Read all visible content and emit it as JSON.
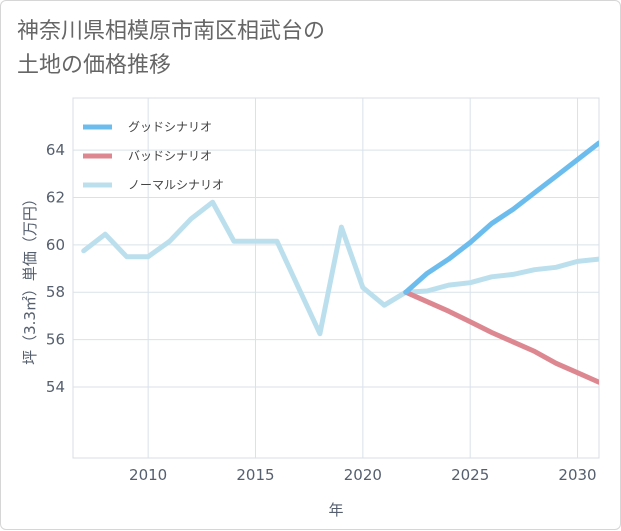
{
  "title": "神奈川県相模原市南区相武台の\n土地の価格推移",
  "chart_data": {
    "type": "line",
    "xlabel": "年",
    "ylabel": "坪（3.3㎡）単価（万円）",
    "xlim": [
      2006.5,
      2031
    ],
    "ylim": [
      51,
      66.2
    ],
    "x_ticks": [
      2010,
      2015,
      2020,
      2025,
      2030
    ],
    "y_ticks": [
      54,
      56,
      58,
      60,
      62,
      64
    ],
    "grid": true,
    "legend_position": "top-left",
    "series": [
      {
        "name": "グッドシナリオ",
        "color": "#6cbdee",
        "x": [
          2022,
          2023,
          2024,
          2025,
          2026,
          2027,
          2028,
          2029,
          2030,
          2031
        ],
        "y": [
          58.0,
          58.8,
          59.4,
          60.1,
          60.9,
          61.5,
          62.2,
          62.9,
          63.6,
          64.3
        ]
      },
      {
        "name": "バッドシナリオ",
        "color": "#dd8890",
        "x": [
          2022,
          2023,
          2024,
          2025,
          2026,
          2027,
          2028,
          2029,
          2030,
          2031
        ],
        "y": [
          58.0,
          57.6,
          57.2,
          56.75,
          56.3,
          55.9,
          55.5,
          55.0,
          54.6,
          54.2
        ]
      },
      {
        "name": "ノーマルシナリオ",
        "color": "#bcdfee",
        "x": [
          2007,
          2008,
          2009,
          2010,
          2011,
          2012,
          2013,
          2014,
          2015,
          2016,
          2017,
          2018,
          2019,
          2020,
          2021,
          2022,
          2023,
          2024,
          2025,
          2026,
          2027,
          2028,
          2029,
          2030,
          2031
        ],
        "y": [
          59.75,
          60.45,
          59.5,
          59.5,
          60.15,
          61.1,
          61.8,
          60.15,
          60.15,
          60.15,
          58.2,
          56.25,
          60.75,
          58.2,
          57.45,
          58.0,
          58.05,
          58.3,
          58.4,
          58.65,
          58.75,
          58.95,
          59.05,
          59.3,
          59.4
        ]
      }
    ]
  }
}
